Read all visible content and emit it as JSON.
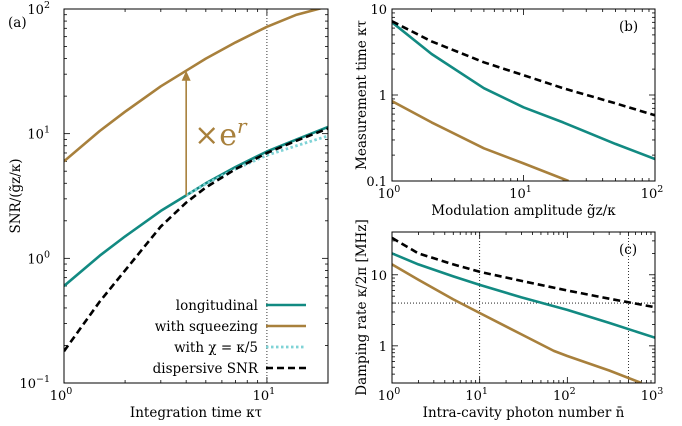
{
  "colors": {
    "teal": "#128a82",
    "brown": "#a8803c",
    "cyan": "#7fd3d6",
    "black": "#000000",
    "arrow": "#a8803c"
  },
  "chart_data": [
    {
      "id": "a",
      "panel_label": "(a)",
      "type": "line",
      "xscale": "log",
      "yscale": "log",
      "xlim": [
        1,
        20
      ],
      "ylim": [
        0.1,
        100
      ],
      "xlabel": "Integration time κτ",
      "ylabel": "SNR/(g̃z/κ)",
      "x_ticks": [
        {
          "v": 1,
          "t": "10",
          "e": "0"
        },
        {
          "v": 10,
          "t": "10",
          "e": "1"
        }
      ],
      "y_ticks": [
        {
          "v": 0.1,
          "t": "10",
          "e": "−1"
        },
        {
          "v": 1,
          "t": "10",
          "e": "0"
        },
        {
          "v": 10,
          "t": "10",
          "e": "1"
        },
        {
          "v": 100,
          "t": "10",
          "e": "2"
        }
      ],
      "vlines": [
        10
      ],
      "annotation": {
        "text": "×e",
        "sup": "r",
        "x": 4,
        "y_from": 3.2,
        "y_to": 32
      },
      "legend_position": "bottom-right",
      "series": [
        {
          "name": "longitudinal",
          "color": "teal",
          "style": "solid",
          "x": [
            1,
            1.5,
            2,
            3,
            4,
            5,
            7,
            10,
            14,
            20
          ],
          "y": [
            0.6,
            1.05,
            1.5,
            2.4,
            3.2,
            4.0,
            5.4,
            7.2,
            9.0,
            11.3
          ]
        },
        {
          "name": "with squeezing",
          "color": "brown",
          "style": "solid",
          "x": [
            1,
            1.5,
            2,
            3,
            4,
            5,
            7,
            10,
            14,
            20
          ],
          "y": [
            6.0,
            10.5,
            15,
            24,
            32,
            40,
            54,
            72,
            90,
            105
          ]
        },
        {
          "name": "with χ = κ/5",
          "color": "cyan",
          "style": "dotted",
          "x": [
            4,
            5,
            7,
            10,
            14,
            20
          ],
          "y": [
            3.2,
            3.95,
            5.2,
            6.7,
            8.0,
            9.6
          ]
        },
        {
          "name": "dispersive SNR",
          "color": "black",
          "style": "dashed",
          "x": [
            1,
            1.5,
            2,
            3,
            4,
            5,
            7,
            10,
            14,
            20
          ],
          "y": [
            0.18,
            0.45,
            0.8,
            1.8,
            2.8,
            3.7,
            5.2,
            7.0,
            8.8,
            11.0
          ]
        }
      ]
    },
    {
      "id": "b",
      "panel_label": "(b)",
      "type": "line",
      "xscale": "log",
      "yscale": "log",
      "xlim": [
        1,
        100
      ],
      "ylim": [
        0.1,
        10
      ],
      "xlabel": "Modulation amplitude g̃z/κ",
      "ylabel": "Measurement time κτ",
      "x_ticks": [
        {
          "v": 1,
          "t": "10",
          "e": "0"
        },
        {
          "v": 10,
          "t": "10",
          "e": "1"
        },
        {
          "v": 100,
          "t": "10",
          "e": "2"
        }
      ],
      "y_ticks": [
        {
          "v": 0.1,
          "t": "0.1",
          "e": ""
        },
        {
          "v": 1,
          "t": "1",
          "e": ""
        },
        {
          "v": 10,
          "t": "10",
          "e": ""
        }
      ],
      "series": [
        {
          "color": "teal",
          "style": "solid",
          "x": [
            1,
            2,
            5,
            10,
            20,
            50,
            100
          ],
          "y": [
            7.0,
            3.0,
            1.2,
            0.72,
            0.48,
            0.27,
            0.18
          ]
        },
        {
          "color": "brown",
          "style": "solid",
          "x": [
            1,
            2,
            5,
            10,
            22
          ],
          "y": [
            0.85,
            0.48,
            0.24,
            0.16,
            0.1
          ]
        },
        {
          "color": "black",
          "style": "dashed",
          "x": [
            1,
            2,
            5,
            10,
            20,
            50,
            100
          ],
          "y": [
            7.2,
            4.2,
            2.4,
            1.7,
            1.2,
            0.8,
            0.58
          ]
        }
      ]
    },
    {
      "id": "c",
      "panel_label": "(c)",
      "type": "line",
      "xscale": "log",
      "yscale": "log",
      "xlim": [
        1,
        1000
      ],
      "ylim": [
        0.3,
        40
      ],
      "xlabel": "Intra-cavity photon number n̄",
      "ylabel": "Damping rate κ/2π [MHz]",
      "x_ticks": [
        {
          "v": 1,
          "t": "10",
          "e": "0"
        },
        {
          "v": 10,
          "t": "10",
          "e": "1"
        },
        {
          "v": 100,
          "t": "10",
          "e": "2"
        },
        {
          "v": 1000,
          "t": "10",
          "e": "3"
        }
      ],
      "y_ticks": [
        {
          "v": 1,
          "t": "1",
          "e": ""
        },
        {
          "v": 10,
          "t": "10",
          "e": ""
        }
      ],
      "vlines": [
        10,
        500
      ],
      "hlines": [
        4
      ],
      "series": [
        {
          "color": "teal",
          "style": "solid",
          "x": [
            1,
            2,
            5,
            10,
            30,
            100,
            300,
            1000
          ],
          "y": [
            20,
            14,
            9.5,
            7.2,
            4.8,
            3.2,
            2.1,
            1.3
          ]
        },
        {
          "color": "brown",
          "style": "solid",
          "x": [
            1,
            2,
            5,
            10,
            30,
            70,
            100,
            300,
            700
          ],
          "y": [
            14,
            8.5,
            4.5,
            2.9,
            1.45,
            0.85,
            0.72,
            0.45,
            0.3
          ]
        },
        {
          "color": "black",
          "style": "dashed",
          "x": [
            1,
            2,
            5,
            10,
            30,
            100,
            300,
            1000
          ],
          "y": [
            33,
            20,
            14,
            11,
            8.2,
            6.0,
            4.6,
            3.5
          ]
        }
      ]
    }
  ]
}
